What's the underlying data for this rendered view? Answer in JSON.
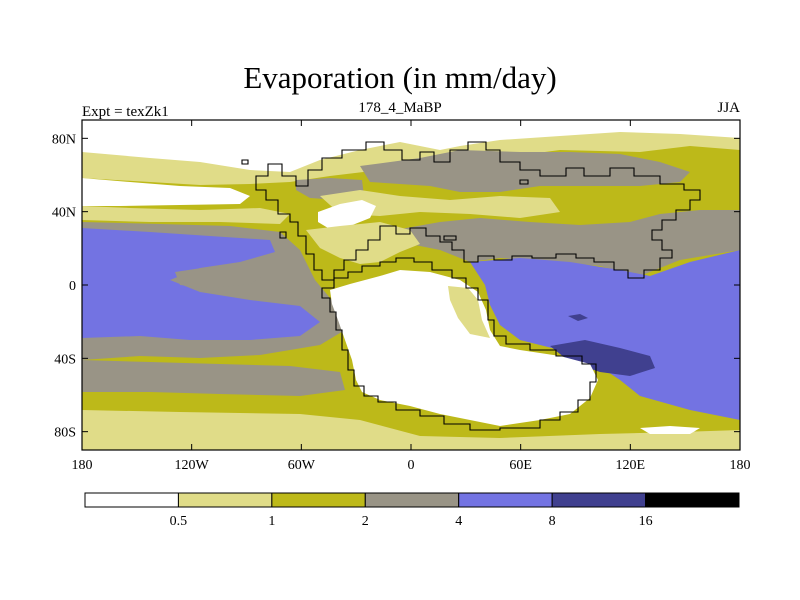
{
  "title": "Evaporation (in mm/day)",
  "left_label": "Expt = texZk1",
  "center_label": "178_4_MaBP",
  "right_label": "JJA",
  "lon_ticks": [
    {
      "label": "180",
      "lon": -180
    },
    {
      "label": "120W",
      "lon": -120
    },
    {
      "label": "60W",
      "lon": -60
    },
    {
      "label": "0",
      "lon": 0
    },
    {
      "label": "60E",
      "lon": 60
    },
    {
      "label": "120E",
      "lon": 120
    },
    {
      "label": "180",
      "lon": 180
    }
  ],
  "lat_ticks": [
    {
      "label": "80N",
      "lat": 80
    },
    {
      "label": "40N",
      "lat": 40
    },
    {
      "label": "0",
      "lat": 0
    },
    {
      "label": "40S",
      "lat": -40
    },
    {
      "label": "80S",
      "lat": -80
    }
  ],
  "colorbar": {
    "colors": [
      "#ffffff",
      "#e0dc88",
      "#bdb919",
      "#999486",
      "#7373e2",
      "#40408f",
      "#000000"
    ],
    "labels": [
      "0.5",
      "1",
      "2",
      "4",
      "8",
      "16"
    ]
  },
  "chart_data": {
    "type": "heatmap",
    "title": "Evaporation (in mm/day)",
    "subtitle": "178_4_MaBP",
    "experiment": "Expt = texZk1",
    "season": "JJA",
    "x_range": [
      -180,
      180
    ],
    "y_range": [
      -90,
      90
    ],
    "levels": [
      0.5,
      1,
      2,
      4,
      8,
      16
    ]
  }
}
